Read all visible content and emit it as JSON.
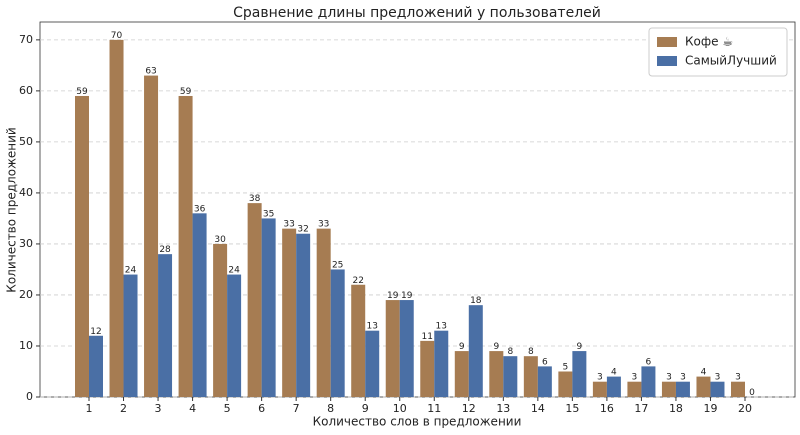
{
  "chart_data": {
    "type": "bar",
    "title": "Сравнение длины предложений у пользователей",
    "x_label": "Количество слов в предложении",
    "y_label": "Количество предложений",
    "categories": [
      "1",
      "2",
      "3",
      "4",
      "5",
      "6",
      "7",
      "8",
      "9",
      "10",
      "11",
      "12",
      "13",
      "14",
      "15",
      "16",
      "17",
      "18",
      "19",
      "20"
    ],
    "series": [
      {
        "name": "Кофе ☕",
        "color": "#a67c52",
        "values": [
          59,
          70,
          63,
          59,
          30,
          38,
          33,
          33,
          22,
          19,
          11,
          9,
          9,
          8,
          5,
          3,
          3,
          3,
          4,
          3
        ]
      },
      {
        "name": "СамыйЛучший",
        "color": "#4a6fa5",
        "values": [
          12,
          24,
          28,
          36,
          24,
          35,
          32,
          25,
          13,
          19,
          13,
          18,
          8,
          6,
          9,
          4,
          6,
          3,
          3,
          0
        ]
      }
    ],
    "ylim": [
      0,
      73.5
    ],
    "yticks": [
      0,
      10,
      20,
      30,
      40,
      50,
      60,
      70
    ],
    "grid": true,
    "legend": "upper right"
  }
}
